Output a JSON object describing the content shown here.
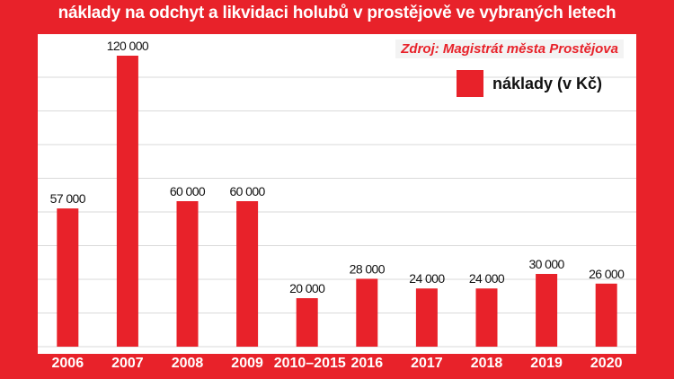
{
  "chart_data": {
    "type": "bar",
    "title": "náklady na odchyt a likvidaci holubů v prostějově ve vybraných letech",
    "source": "Zdroj: Magistrát města Prostějova",
    "legend": "náklady (v Kč)",
    "legend_position": "top-right",
    "categories": [
      "2006",
      "2007",
      "2008",
      "2009",
      "2010–2015",
      "2016",
      "2017",
      "2018",
      "2019",
      "2020"
    ],
    "values": [
      57000,
      120000,
      60000,
      60000,
      20000,
      28000,
      24000,
      24000,
      30000,
      26000
    ],
    "value_labels": [
      "57 000",
      "120 000",
      "60 000",
      "60 000",
      "20 000",
      "28 000",
      "24 000",
      "24 000",
      "30 000",
      "26 000"
    ],
    "ylim": [
      0,
      120000
    ],
    "grid": true,
    "colors": {
      "bar": "#e8222a",
      "background": "#e8222a",
      "panel": "#ffffff",
      "grid": "#d9d9d9"
    }
  }
}
